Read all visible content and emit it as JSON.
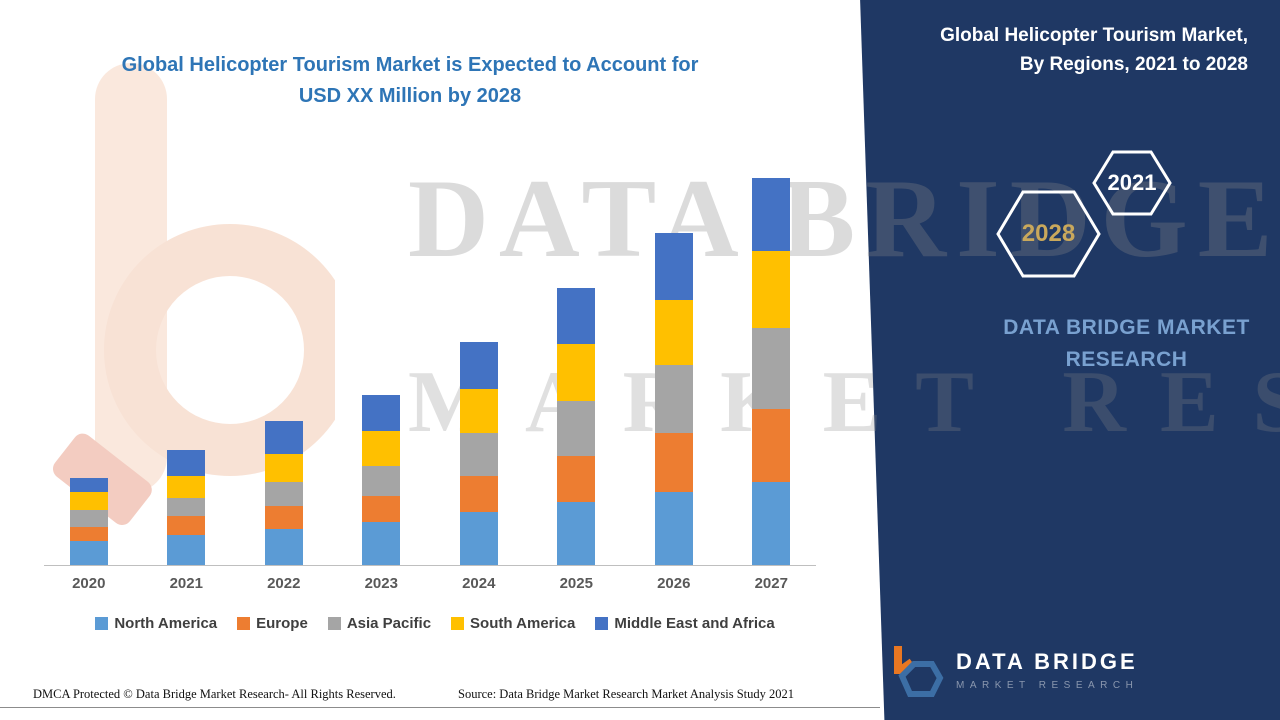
{
  "header": {
    "title_line1": "Global Helicopter Tourism Market is Expected to Account for",
    "title_line2": "USD XX Million by 2028"
  },
  "side_panel": {
    "title": "Global Helicopter Tourism Market, By Regions, 2021 to 2028",
    "hexagon_forecast_year": "2028",
    "hexagon_base_year": "2021",
    "brand_line1": "DATA BRIDGE MARKET",
    "brand_line2": "RESEARCH",
    "logo_name": "DATA BRIDGE",
    "logo_sub": "MARKET RESEARCH",
    "panel_color": "#1F3864"
  },
  "watermark": {
    "line1": "DATA BRIDGE",
    "line2": "MARKET RESEARCH"
  },
  "chart_data": {
    "type": "bar",
    "stacked": true,
    "title": "Global Helicopter Tourism Market is Expected to Account for USD XX Million by 2028",
    "categories": [
      "2020",
      "2021",
      "2022",
      "2023",
      "2024",
      "2025",
      "2026",
      "2027"
    ],
    "series": [
      {
        "name": "North America",
        "color": "#5B9BD5",
        "values": [
          12,
          15,
          18,
          21,
          26,
          31,
          36,
          41
        ]
      },
      {
        "name": "Europe",
        "color": "#ED7D31",
        "values": [
          7,
          9,
          11,
          13,
          18,
          23,
          29,
          36
        ]
      },
      {
        "name": "Asia Pacific",
        "color": "#A5A5A5",
        "values": [
          8,
          9,
          12,
          15,
          21,
          27,
          34,
          40
        ]
      },
      {
        "name": "South America",
        "color": "#FFC000",
        "values": [
          9,
          11,
          14,
          17,
          22,
          28,
          32,
          38
        ]
      },
      {
        "name": "Middle East and Africa",
        "color": "#4472C4",
        "values": [
          7,
          13,
          16,
          18,
          23,
          28,
          33,
          36
        ]
      }
    ],
    "xlabel": "",
    "ylabel": "",
    "values_unit": "USD Million (XX)",
    "ylim": [
      0,
      200
    ],
    "grid": false,
    "legend_position": "bottom"
  },
  "footer": {
    "left": "DMCA Protected © Data Bridge Market Research- All Rights Reserved.",
    "source": "Source: Data Bridge Market Research Market Analysis Study 2021"
  }
}
